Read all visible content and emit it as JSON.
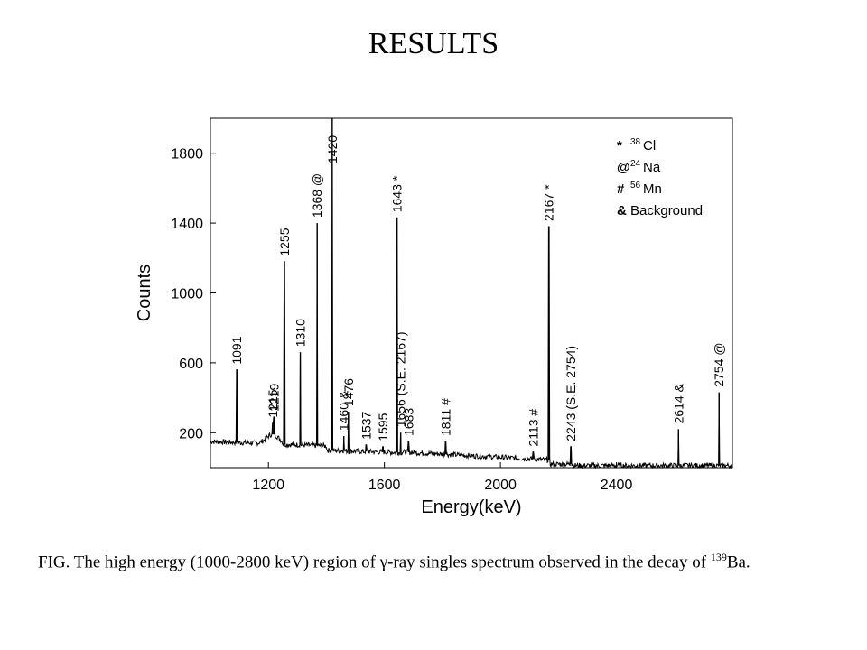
{
  "slide": {
    "title": "RESULTS",
    "caption_pre": "FIG. The high energy (1000-2800 keV) region of γ-ray singles spectrum observed in the decay of ",
    "caption_sup": "139",
    "caption_post": "Ba."
  },
  "chart_data": {
    "type": "line",
    "xlabel": "Energy(keV)",
    "ylabel": "Counts",
    "xlim": [
      1000,
      2800
    ],
    "ylim": [
      0,
      2000
    ],
    "xticks": [
      1200,
      1600,
      2000,
      2400
    ],
    "yticks": [
      200,
      600,
      1000,
      1400,
      1800
    ],
    "grid": false,
    "legend_position": "top-right",
    "legend": [
      {
        "symbol": "*",
        "label": "38Cl"
      },
      {
        "symbol": "@",
        "label": "24Na"
      },
      {
        "symbol": "#",
        "label": "56Mn"
      },
      {
        "symbol": "&",
        "label": "Background"
      }
    ],
    "peaks": [
      {
        "energy": 1091,
        "counts": 560,
        "label": "1091",
        "marker": ""
      },
      {
        "energy": 1215,
        "counts": 255,
        "label": "1215",
        "marker": ""
      },
      {
        "energy": 1219,
        "counts": 290,
        "label": "1219",
        "marker": ""
      },
      {
        "energy": 1255,
        "counts": 1180,
        "label": "1255",
        "marker": ""
      },
      {
        "energy": 1310,
        "counts": 660,
        "label": "1310",
        "marker": ""
      },
      {
        "energy": 1368,
        "counts": 1400,
        "label": "1368",
        "marker": "@"
      },
      {
        "energy": 1420,
        "counts": 2000,
        "label": "1420",
        "marker": ""
      },
      {
        "energy": 1460,
        "counts": 180,
        "label": "1460",
        "marker": "&"
      },
      {
        "energy": 1476,
        "counts": 320,
        "label": "1476",
        "marker": ""
      },
      {
        "energy": 1537,
        "counts": 130,
        "label": "1537",
        "marker": ""
      },
      {
        "energy": 1595,
        "counts": 120,
        "label": "1595",
        "marker": ""
      },
      {
        "energy": 1643,
        "counts": 1430,
        "label": "1643",
        "marker": "*"
      },
      {
        "energy": 1656,
        "counts": 200,
        "label": "1656 (S.E. 2167)",
        "marker": ""
      },
      {
        "energy": 1683,
        "counts": 150,
        "label": "1683",
        "marker": ""
      },
      {
        "energy": 1811,
        "counts": 150,
        "label": "1811",
        "marker": "#"
      },
      {
        "energy": 2113,
        "counts": 90,
        "label": "2113",
        "marker": "#"
      },
      {
        "energy": 2167,
        "counts": 1380,
        "label": "2167",
        "marker": "*"
      },
      {
        "energy": 2243,
        "counts": 120,
        "label": "2243 (S.E. 2754)",
        "marker": ""
      },
      {
        "energy": 2614,
        "counts": 220,
        "label": "2614",
        "marker": "&"
      },
      {
        "energy": 2754,
        "counts": 430,
        "label": "2754",
        "marker": "@"
      }
    ]
  }
}
